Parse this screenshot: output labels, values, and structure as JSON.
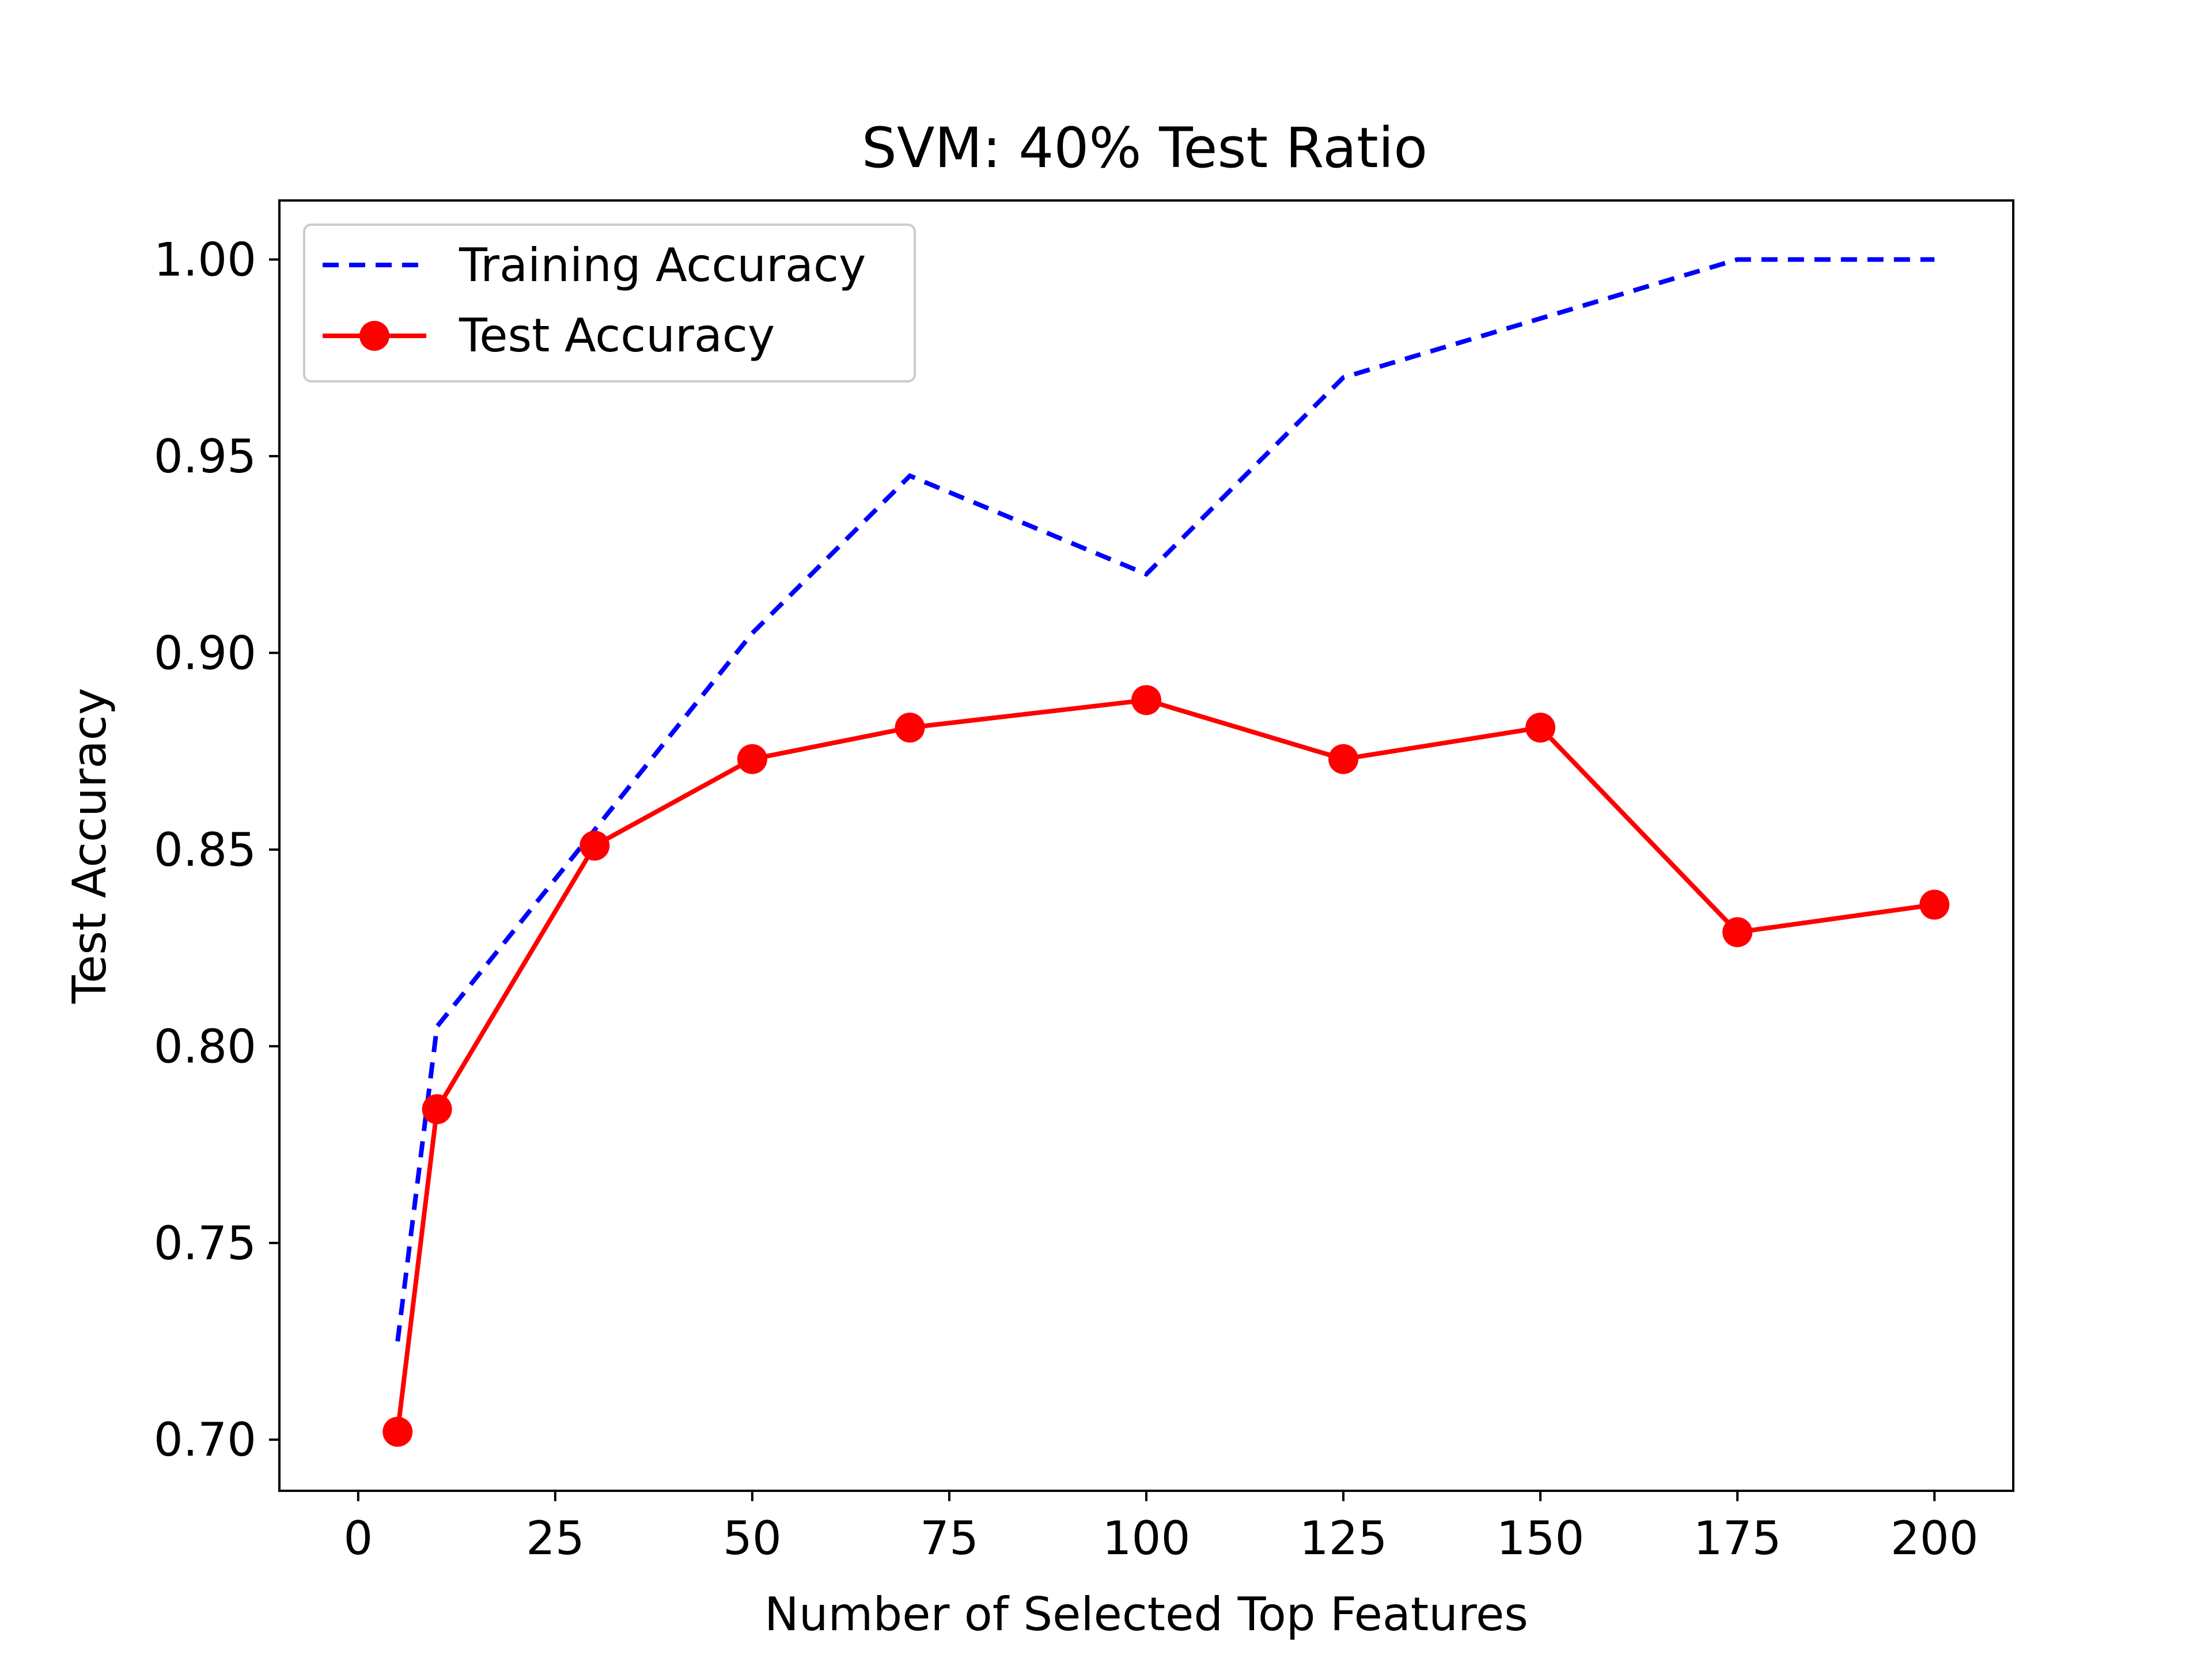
{
  "chart_data": {
    "type": "line",
    "title": "SVM: 40% Test Ratio",
    "xlabel": "Number of Selected Top Features",
    "ylabel": "Test Accuracy",
    "xlim": [
      -10,
      210
    ],
    "ylim": [
      0.687,
      1.015
    ],
    "x_ticks": [
      0,
      25,
      50,
      75,
      100,
      125,
      150,
      175,
      200
    ],
    "x_tick_labels": [
      "0",
      "25",
      "50",
      "75",
      "100",
      "125",
      "150",
      "175",
      "200"
    ],
    "y_ticks": [
      0.7,
      0.75,
      0.8,
      0.85,
      0.9,
      0.95,
      1.0
    ],
    "y_tick_labels": [
      "0.70",
      "0.75",
      "0.80",
      "0.85",
      "0.90",
      "0.95",
      "1.00"
    ],
    "grid": false,
    "legend_position": "top-left",
    "x": [
      5,
      10,
      30,
      50,
      70,
      100,
      125,
      150,
      175,
      200
    ],
    "series": [
      {
        "name": "Training Accuracy",
        "values": [
          0.725,
          0.805,
          0.855,
          0.905,
          0.945,
          0.92,
          0.97,
          0.985,
          1.0,
          1.0
        ],
        "color": "#0000ff",
        "style": "dashed",
        "marker": "none"
      },
      {
        "name": "Test Accuracy",
        "values": [
          0.702,
          0.784,
          0.851,
          0.873,
          0.881,
          0.888,
          0.873,
          0.881,
          0.829,
          0.836
        ],
        "color": "#ff0000",
        "style": "solid",
        "marker": "circle"
      }
    ]
  }
}
